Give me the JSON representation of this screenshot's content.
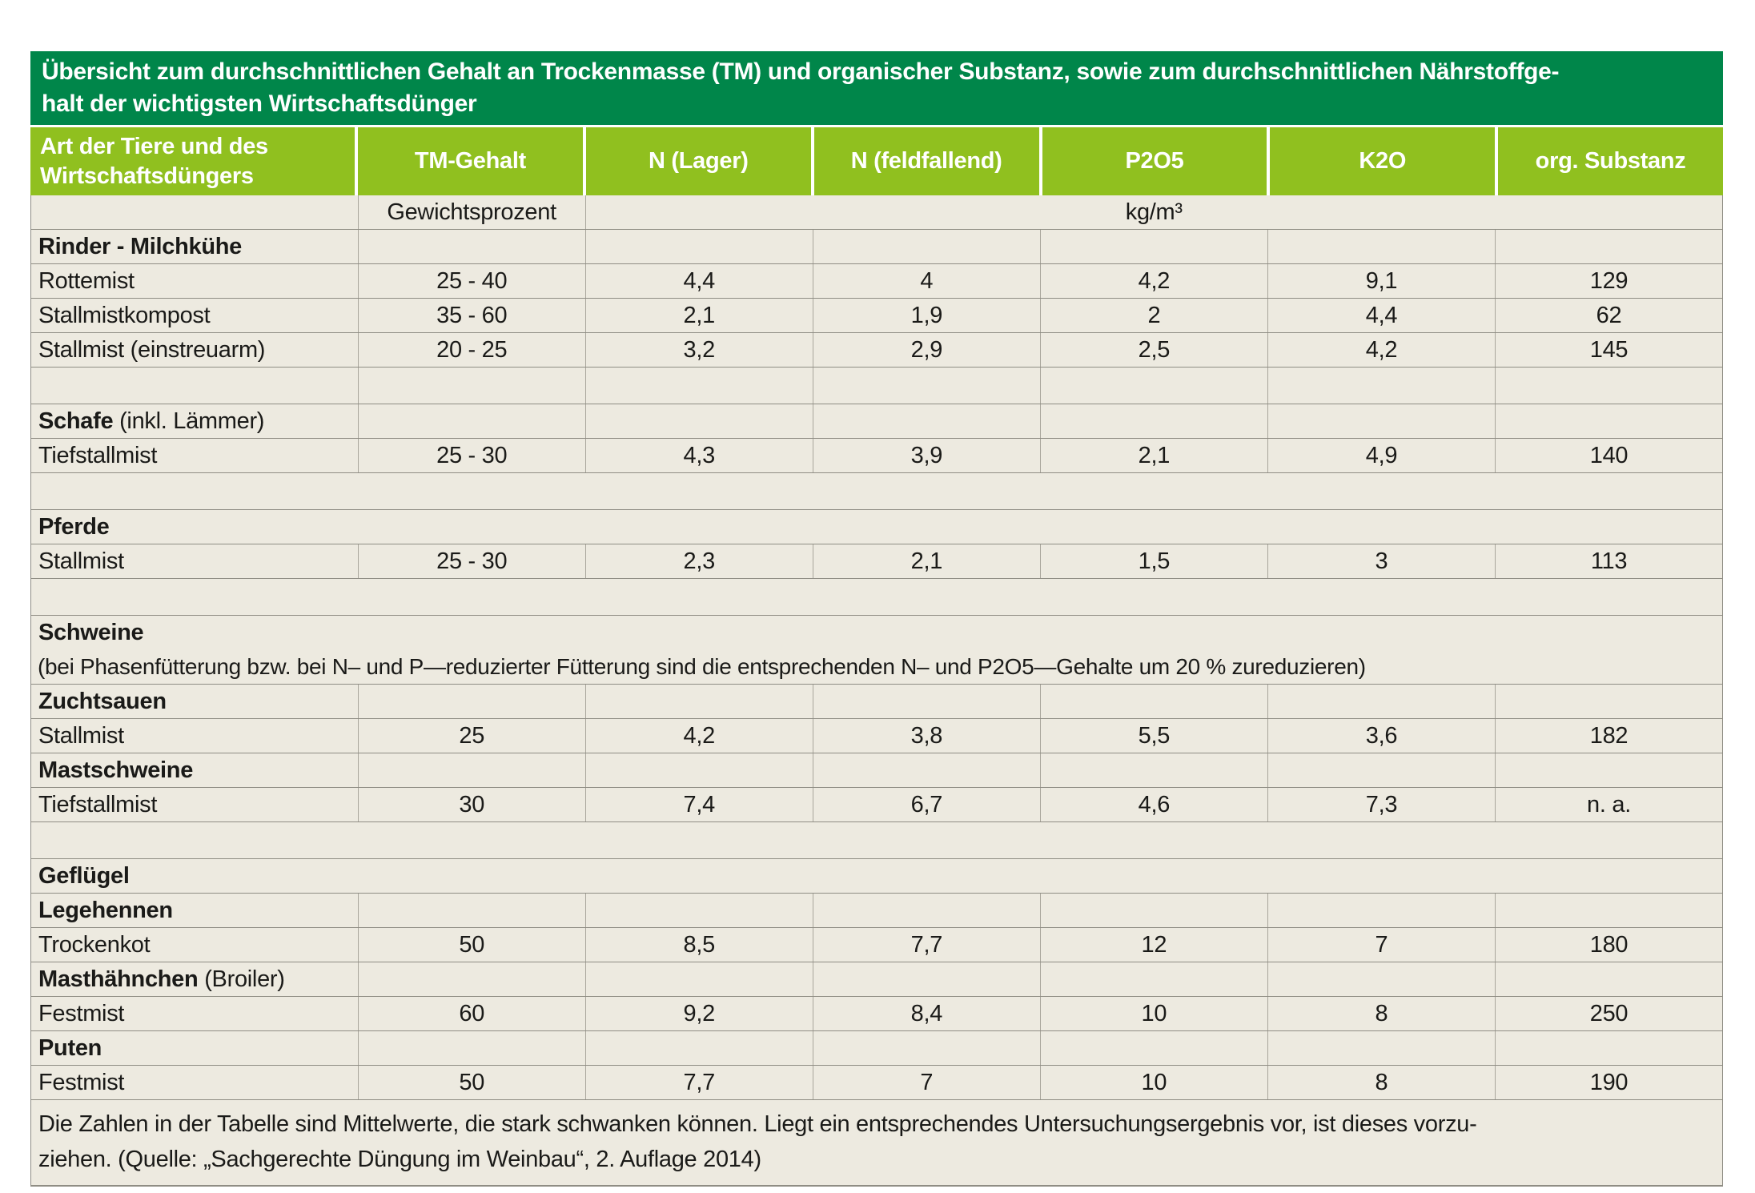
{
  "colors": {
    "dark_green": "#00864a",
    "light_green": "#90c01f",
    "cream": "#edeae0",
    "border_dark": "#8f8d84",
    "border_light": "#a9a69c",
    "text": "#1a1a18",
    "white": "#ffffff"
  },
  "table": {
    "title_line1": "Übersicht zum durchschnittlichen Gehalt an Trockenmasse (TM) und organischer Substanz, sowie zum durchschnittlichen Nährstoffge-",
    "title_line2": "halt der wichtigsten Wirtschaftsdünger",
    "header": {
      "col1_line1": "Art der Tiere und des",
      "col1_line2": "Wirtschaftsdüngers",
      "cols": [
        "TM-Gehalt",
        "N (Lager)",
        "N (feldfallend)",
        "P2O5",
        "K2O",
        "org. Substanz"
      ]
    },
    "units": {
      "tm": "Gewichtsprozent",
      "rest": "kg/m³"
    },
    "rows": [
      {
        "kind": "section",
        "label": "Rinder - Milchkühe",
        "bordered": true,
        "hline": true
      },
      {
        "kind": "data",
        "label": "Rottemist",
        "values": [
          "25 - 40",
          "4,4",
          "4",
          "4,2",
          "9,1",
          "129"
        ],
        "bordered": true,
        "hline": true
      },
      {
        "kind": "data",
        "label": "Stallmistkompost",
        "values": [
          "35 - 60",
          "2,1",
          "1,9",
          "2",
          "4,4",
          "62"
        ],
        "bordered": true,
        "hline": true
      },
      {
        "kind": "data",
        "label": "Stallmist (einstreuarm)",
        "values": [
          "20 - 25",
          "3,2",
          "2,9",
          "2,5",
          "4,2",
          "145"
        ],
        "bordered": true,
        "hline": true
      },
      {
        "kind": "spacer",
        "bordered": true,
        "hline": true
      },
      {
        "kind": "section",
        "label": "Schafe",
        "suffix": " (inkl. Lämmer)",
        "bordered": true,
        "hline": true
      },
      {
        "kind": "data",
        "label": "Tiefstallmist",
        "values": [
          "25 - 30",
          "4,3",
          "3,9",
          "2,1",
          "4,9",
          "140"
        ],
        "bordered": true,
        "hline": true
      },
      {
        "kind": "spacer",
        "bordered": false,
        "hline": true
      },
      {
        "kind": "section",
        "label": "Pferde",
        "bordered": false,
        "hline": true
      },
      {
        "kind": "data",
        "label": "Stallmist",
        "values": [
          "25 - 30",
          "2,3",
          "2,1",
          "1,5",
          "3",
          "113"
        ],
        "bordered": true,
        "hline": true
      },
      {
        "kind": "spacer",
        "bordered": false,
        "hline": true
      },
      {
        "kind": "section",
        "label": "Schweine",
        "bordered": false,
        "hline": false
      },
      {
        "kind": "note",
        "text": "(bei Phasenfütterung bzw. bei N– und P—reduzierter Fütterung sind die entsprechenden N– und P2O5—Gehalte um 20 % zureduzieren)",
        "hline": true
      },
      {
        "kind": "section",
        "label": "Zuchtsauen",
        "bordered": true,
        "hline": true
      },
      {
        "kind": "data",
        "label": "Stallmist",
        "values": [
          "25",
          "4,2",
          "3,8",
          "5,5",
          "3,6",
          "182"
        ],
        "bordered": true,
        "hline": true
      },
      {
        "kind": "section",
        "label": "Mastschweine",
        "bordered": true,
        "hline": true
      },
      {
        "kind": "data",
        "label": "Tiefstallmist",
        "values": [
          "30",
          "7,4",
          "6,7",
          "4,6",
          "7,3",
          "n. a."
        ],
        "bordered": true,
        "hline": true
      },
      {
        "kind": "spacer",
        "bordered": false,
        "hline": true
      },
      {
        "kind": "section",
        "label": "Geflügel",
        "bordered": false,
        "hline": true
      },
      {
        "kind": "section",
        "label": "Legehennen",
        "bordered": true,
        "hline": true
      },
      {
        "kind": "data",
        "label": "Trockenkot",
        "values": [
          "50",
          "8,5",
          "7,7",
          "12",
          "7",
          "180"
        ],
        "bordered": true,
        "hline": true
      },
      {
        "kind": "section",
        "label": "Masthähnchen",
        "suffix": " (Broiler)",
        "bordered": true,
        "hline": true
      },
      {
        "kind": "data",
        "label": "Festmist",
        "values": [
          "60",
          "9,2",
          "8,4",
          "10",
          "8",
          "250"
        ],
        "bordered": true,
        "hline": true
      },
      {
        "kind": "section",
        "label": "Puten",
        "bordered": true,
        "hline": true
      },
      {
        "kind": "data",
        "label": "Festmist",
        "values": [
          "50",
          "7,7",
          "7",
          "10",
          "8",
          "190"
        ],
        "bordered": true,
        "hline": true
      }
    ],
    "footer_line1": "Die Zahlen in der Tabelle sind Mittelwerte, die stark schwanken können. Liegt ein entsprechendes Untersuchungsergebnis vor, ist dieses vorzu-",
    "footer_line2": "ziehen. (Quelle: „Sachgerechte Düngung im Weinbau“, 2. Auflage 2014)"
  }
}
